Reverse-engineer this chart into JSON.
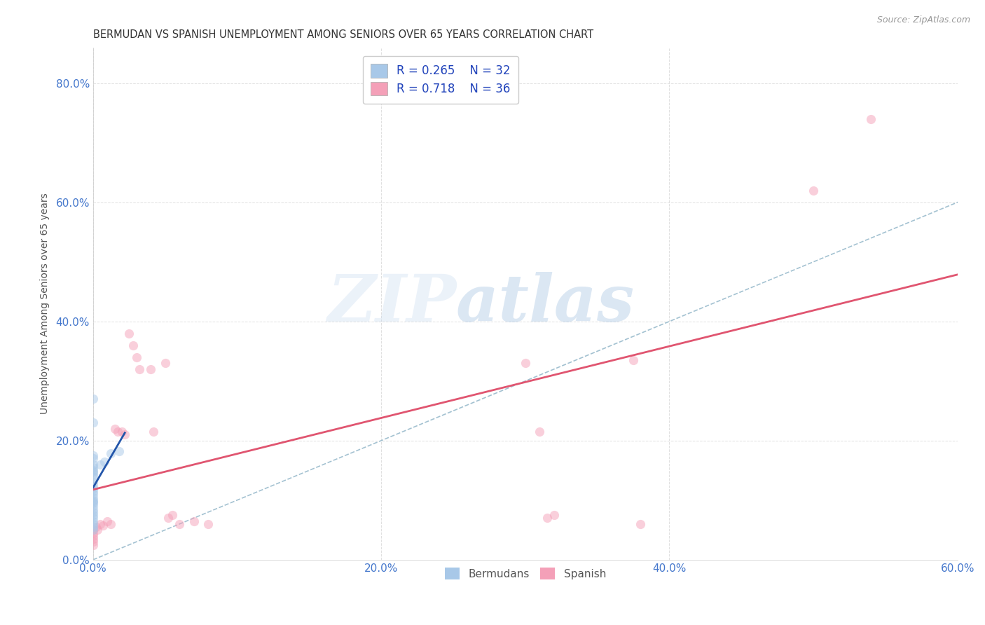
{
  "title": "BERMUDAN VS SPANISH UNEMPLOYMENT AMONG SENIORS OVER 65 YEARS CORRELATION CHART",
  "source": "Source: ZipAtlas.com",
  "ylabel_label": "Unemployment Among Seniors over 65 years",
  "legend_entries": [
    {
      "label": "Bermudans",
      "R": "0.265",
      "N": "32",
      "color": "#a8c8e8"
    },
    {
      "label": "Spanish",
      "R": "0.718",
      "N": "36",
      "color": "#f4a0b8"
    }
  ],
  "bermuda_scatter": [
    [
      0.0,
      0.27
    ],
    [
      0.0,
      0.23
    ],
    [
      0.0,
      0.175
    ],
    [
      0.0,
      0.17
    ],
    [
      0.0,
      0.16
    ],
    [
      0.0,
      0.155
    ],
    [
      0.0,
      0.15
    ],
    [
      0.0,
      0.148
    ],
    [
      0.0,
      0.145
    ],
    [
      0.0,
      0.14
    ],
    [
      0.0,
      0.13
    ],
    [
      0.0,
      0.125
    ],
    [
      0.0,
      0.12
    ],
    [
      0.0,
      0.115
    ],
    [
      0.0,
      0.11
    ],
    [
      0.0,
      0.105
    ],
    [
      0.0,
      0.1
    ],
    [
      0.0,
      0.097
    ],
    [
      0.0,
      0.095
    ],
    [
      0.0,
      0.09
    ],
    [
      0.0,
      0.085
    ],
    [
      0.0,
      0.08
    ],
    [
      0.0,
      0.075
    ],
    [
      0.0,
      0.07
    ],
    [
      0.0,
      0.065
    ],
    [
      0.0,
      0.06
    ],
    [
      0.0,
      0.055
    ],
    [
      0.0,
      0.05
    ],
    [
      0.005,
      0.16
    ],
    [
      0.008,
      0.165
    ],
    [
      0.012,
      0.178
    ],
    [
      0.018,
      0.182
    ]
  ],
  "spanish_scatter": [
    [
      0.0,
      0.05
    ],
    [
      0.0,
      0.045
    ],
    [
      0.0,
      0.04
    ],
    [
      0.0,
      0.035
    ],
    [
      0.0,
      0.03
    ],
    [
      0.0,
      0.025
    ],
    [
      0.002,
      0.055
    ],
    [
      0.003,
      0.05
    ],
    [
      0.005,
      0.06
    ],
    [
      0.007,
      0.058
    ],
    [
      0.01,
      0.065
    ],
    [
      0.012,
      0.06
    ],
    [
      0.015,
      0.22
    ],
    [
      0.017,
      0.215
    ],
    [
      0.02,
      0.215
    ],
    [
      0.022,
      0.21
    ],
    [
      0.025,
      0.38
    ],
    [
      0.028,
      0.36
    ],
    [
      0.03,
      0.34
    ],
    [
      0.032,
      0.32
    ],
    [
      0.04,
      0.32
    ],
    [
      0.042,
      0.215
    ],
    [
      0.05,
      0.33
    ],
    [
      0.052,
      0.07
    ],
    [
      0.055,
      0.075
    ],
    [
      0.06,
      0.06
    ],
    [
      0.07,
      0.065
    ],
    [
      0.08,
      0.06
    ],
    [
      0.3,
      0.33
    ],
    [
      0.31,
      0.215
    ],
    [
      0.315,
      0.07
    ],
    [
      0.32,
      0.075
    ],
    [
      0.375,
      0.335
    ],
    [
      0.38,
      0.06
    ],
    [
      0.5,
      0.62
    ],
    [
      0.54,
      0.74
    ]
  ],
  "bermuda_line_color": "#2255aa",
  "spanish_line_color": "#e05570",
  "diagonal_color": "#99bbcc",
  "scatter_alpha": 0.5,
  "scatter_size": 90,
  "background_color": "#ffffff",
  "grid_color": "#e0e0e0",
  "title_color": "#333333",
  "tick_color": "#4477cc",
  "watermark_zip": "ZIP",
  "watermark_atlas": "atlas",
  "watermark_color_zip": "#c8daf0",
  "watermark_color_atlas": "#99bbdd",
  "watermark_alpha": 0.35,
  "xlim": [
    0.0,
    0.6
  ],
  "ylim": [
    0.0,
    0.86
  ],
  "xticks": [
    0.0,
    0.2,
    0.4,
    0.6
  ],
  "yticks": [
    0.0,
    0.2,
    0.4,
    0.6,
    0.8
  ]
}
